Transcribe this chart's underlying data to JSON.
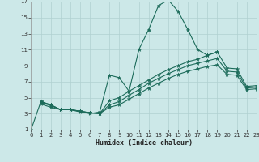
{
  "xlabel": "Humidex (Indice chaleur)",
  "bg_color": "#cce8e8",
  "line_color": "#1c6b5a",
  "grid_color": "#b0d0d0",
  "xlim": [
    0,
    23
  ],
  "ylim": [
    1,
    17
  ],
  "xticks": [
    0,
    1,
    2,
    3,
    4,
    5,
    6,
    7,
    8,
    9,
    10,
    11,
    12,
    13,
    14,
    15,
    16,
    17,
    18,
    19,
    20,
    21,
    22,
    23
  ],
  "yticks": [
    1,
    3,
    5,
    7,
    9,
    11,
    13,
    15,
    17
  ],
  "series": [
    {
      "x": [
        0,
        1,
        2,
        3,
        4,
        5,
        6,
        7,
        8,
        9,
        10,
        11,
        12,
        13,
        14,
        15,
        16,
        17,
        18,
        19
      ],
      "y": [
        1.0,
        4.5,
        4.1,
        3.5,
        3.5,
        3.2,
        3.0,
        3.2,
        7.8,
        7.5,
        5.8,
        11.0,
        13.5,
        16.5,
        17.2,
        15.8,
        13.5,
        11.0,
        10.3,
        10.7
      ]
    },
    {
      "x": [
        1,
        2,
        3,
        4,
        5,
        6,
        7,
        8,
        9,
        10,
        11,
        12,
        13,
        14,
        15,
        16,
        17,
        18,
        19,
        20,
        21,
        22,
        23
      ],
      "y": [
        4.5,
        4.1,
        3.5,
        3.5,
        3.3,
        3.1,
        3.0,
        4.6,
        5.0,
        5.8,
        6.5,
        7.2,
        7.9,
        8.5,
        9.0,
        9.5,
        9.8,
        10.3,
        10.7,
        8.7,
        8.6,
        6.4,
        6.5
      ]
    },
    {
      "x": [
        1,
        2,
        3,
        4,
        5,
        6,
        7,
        8,
        9,
        10,
        11,
        12,
        13,
        14,
        15,
        16,
        17,
        18,
        19,
        20,
        21,
        22,
        23
      ],
      "y": [
        4.4,
        4.0,
        3.5,
        3.5,
        3.3,
        3.1,
        3.0,
        4.1,
        4.5,
        5.3,
        6.0,
        6.8,
        7.4,
        8.0,
        8.5,
        9.0,
        9.3,
        9.6,
        9.9,
        8.3,
        8.2,
        6.2,
        6.3
      ]
    },
    {
      "x": [
        1,
        2,
        3,
        4,
        5,
        6,
        7,
        8,
        9,
        10,
        11,
        12,
        13,
        14,
        15,
        16,
        17,
        18,
        19,
        20,
        21,
        22,
        23
      ],
      "y": [
        4.2,
        3.8,
        3.5,
        3.5,
        3.3,
        3.1,
        3.0,
        3.8,
        4.1,
        4.8,
        5.5,
        6.2,
        6.8,
        7.4,
        7.9,
        8.3,
        8.6,
        8.9,
        9.1,
        7.9,
        7.8,
        6.0,
        6.1
      ]
    }
  ]
}
